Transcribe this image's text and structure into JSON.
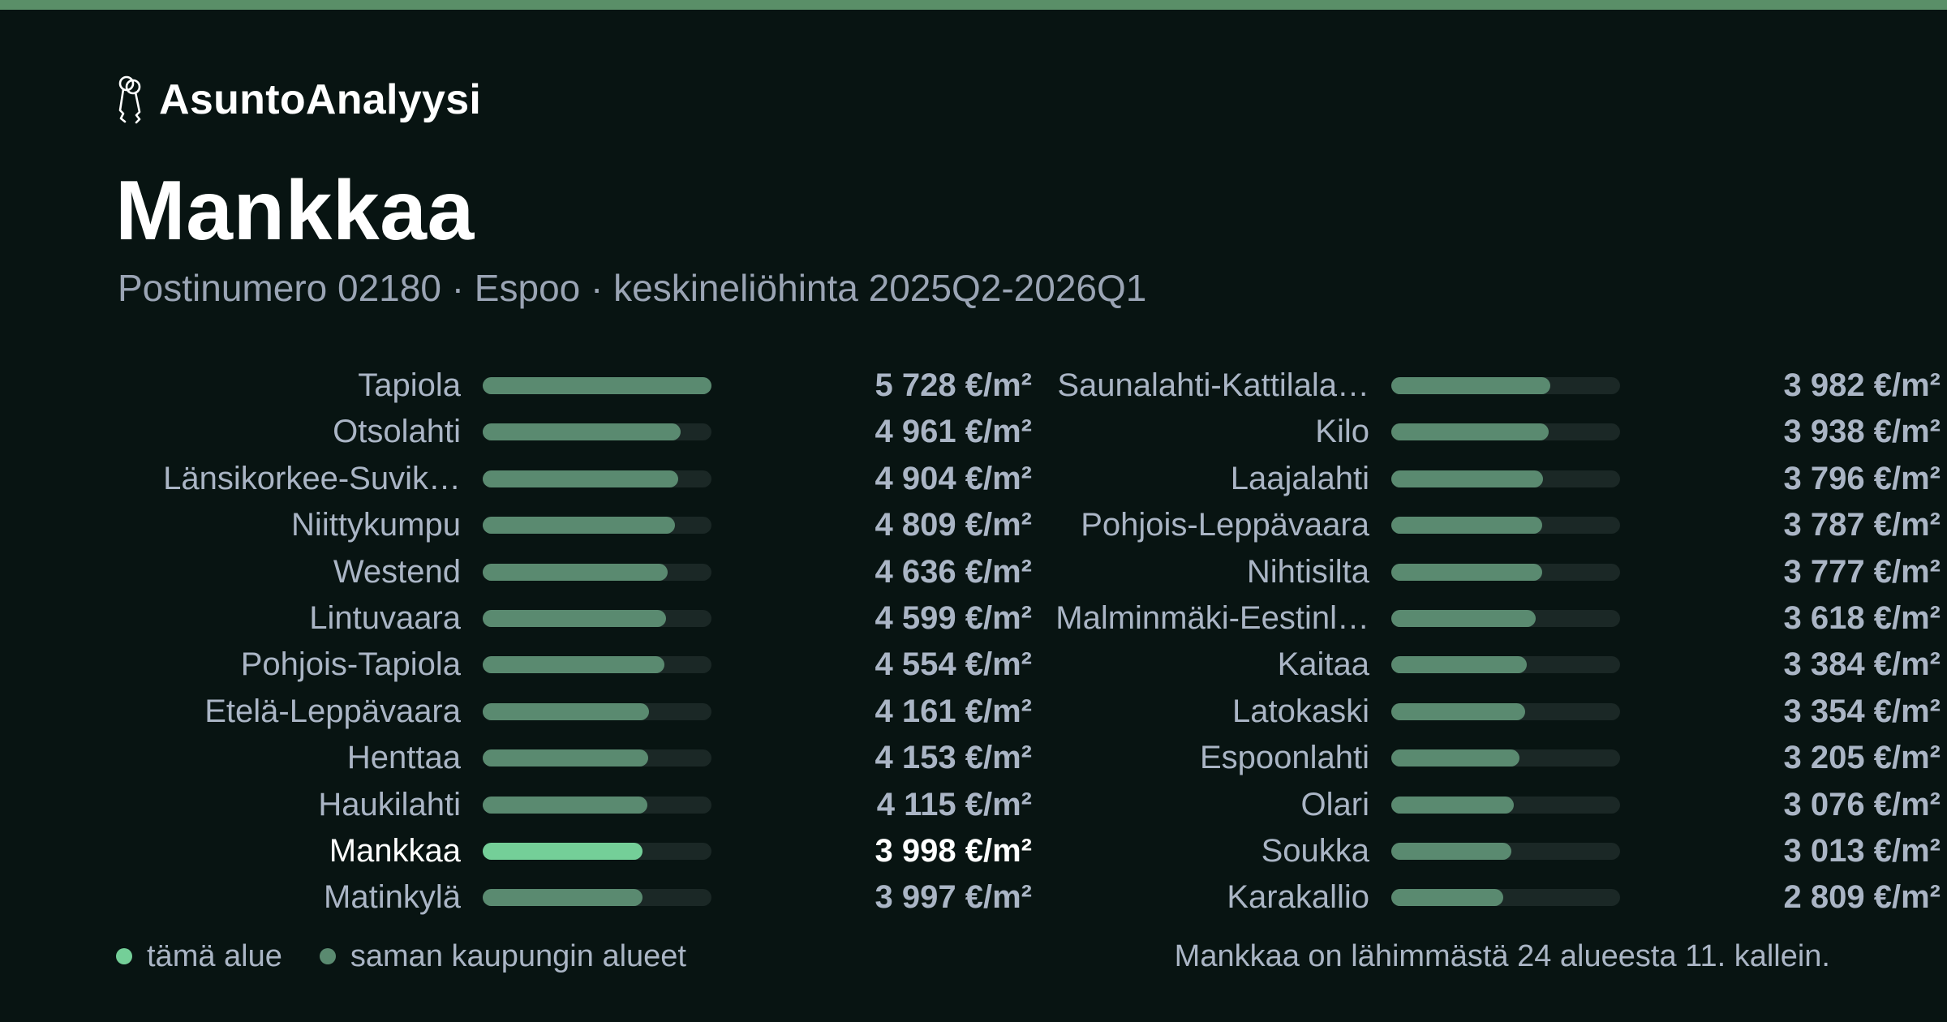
{
  "brand": {
    "name": "AsuntoAnalyysi",
    "icon": "keys-icon"
  },
  "colors": {
    "background": "#081412",
    "accent": "#5a8f68",
    "highlight": "#74cf98",
    "bar": "#5a8a70",
    "track": "#1b2826"
  },
  "header": {
    "title": "Mankkaa",
    "subtitle": "Postinumero 02180 · Espoo · keskineliöhinta 2025Q2-2026Q1"
  },
  "chart_data": {
    "type": "bar",
    "orientation": "horizontal",
    "unit": "€/m²",
    "highlight": "Mankkaa",
    "columns": [
      {
        "rows": [
          {
            "name": "Tapiola",
            "value": 5728,
            "display": "5 728 €/m²"
          },
          {
            "name": "Otsolahti",
            "value": 4961,
            "display": "4 961 €/m²"
          },
          {
            "name": "Länsikorkee-Suvik…",
            "value": 4904,
            "display": "4 904 €/m²"
          },
          {
            "name": "Niittykumpu",
            "value": 4809,
            "display": "4 809 €/m²"
          },
          {
            "name": "Westend",
            "value": 4636,
            "display": "4 636 €/m²"
          },
          {
            "name": "Lintuvaara",
            "value": 4599,
            "display": "4 599 €/m²"
          },
          {
            "name": "Pohjois-Tapiola",
            "value": 4554,
            "display": "4 554 €/m²"
          },
          {
            "name": "Etelä-Leppävaara",
            "value": 4161,
            "display": "4 161 €/m²"
          },
          {
            "name": "Henttaa",
            "value": 4153,
            "display": "4 153 €/m²"
          },
          {
            "name": "Haukilahti",
            "value": 4115,
            "display": "4 115 €/m²"
          },
          {
            "name": "Mankkaa",
            "value": 3998,
            "display": "3 998 €/m²"
          },
          {
            "name": "Matinkylä",
            "value": 3997,
            "display": "3 997 €/m²"
          }
        ]
      },
      {
        "rows": [
          {
            "name": "Saunalahti-Kattilala…",
            "value": 3982,
            "display": "3 982 €/m²"
          },
          {
            "name": "Kilo",
            "value": 3938,
            "display": "3 938 €/m²"
          },
          {
            "name": "Laajalahti",
            "value": 3796,
            "display": "3 796 €/m²"
          },
          {
            "name": "Pohjois-Leppävaara",
            "value": 3787,
            "display": "3 787 €/m²"
          },
          {
            "name": "Nihtisilta",
            "value": 3777,
            "display": "3 777 €/m²"
          },
          {
            "name": "Malminmäki-Eestinl…",
            "value": 3618,
            "display": "3 618 €/m²"
          },
          {
            "name": "Kaitaa",
            "value": 3384,
            "display": "3 384 €/m²"
          },
          {
            "name": "Latokaski",
            "value": 3354,
            "display": "3 354 €/m²"
          },
          {
            "name": "Espoonlahti",
            "value": 3205,
            "display": "3 205 €/m²"
          },
          {
            "name": "Olari",
            "value": 3076,
            "display": "3 076 €/m²"
          },
          {
            "name": "Soukka",
            "value": 3013,
            "display": "3 013 €/m²"
          },
          {
            "name": "Karakallio",
            "value": 2809,
            "display": "2 809 €/m²"
          }
        ]
      }
    ],
    "xlim": [
      0,
      5728
    ],
    "legend": [
      {
        "label": "tämä alue",
        "color": "#74cf98"
      },
      {
        "label": "saman kaupungin alueet",
        "color": "#5a8a70"
      }
    ],
    "note": "Mankkaa on lähimmästä 24 alueesta 11. kallein."
  }
}
